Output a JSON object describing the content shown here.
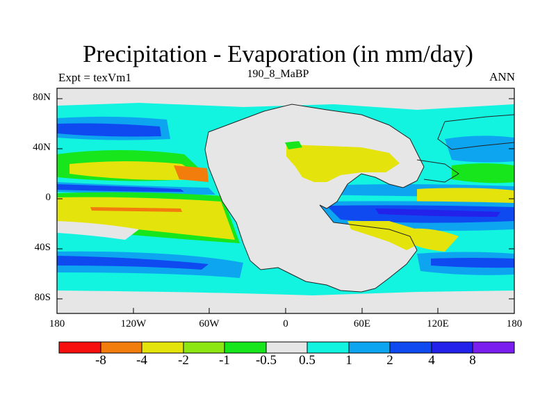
{
  "title": "Precipitation - Evaporation (in mm/day)",
  "left_string": "Expt = texVm1",
  "center_string": "190_8_MaBP",
  "right_string": "ANN",
  "y_ticks": [
    "80N",
    "40N",
    "0",
    "40S",
    "80S"
  ],
  "x_ticks": [
    "180",
    "120W",
    "60W",
    "0",
    "60E",
    "120E",
    "180"
  ],
  "colorbar": {
    "colors": [
      "#f70f0f",
      "#f27c0c",
      "#e4e30c",
      "#8ce612",
      "#16e61b",
      "#e6e6e6",
      "#12f3e0",
      "#0ea5f0",
      "#0f4af0",
      "#2222ea",
      "#7a1ef0"
    ],
    "labels": [
      "-8",
      "-4",
      "-2",
      "-1",
      "-0.5",
      "0.5",
      "1",
      "2",
      "4",
      "8"
    ]
  }
}
